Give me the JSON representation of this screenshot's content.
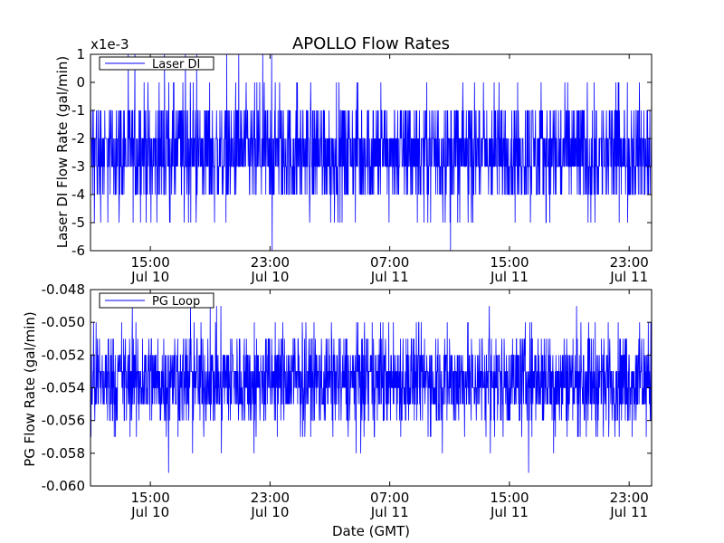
{
  "figure": {
    "title": "APOLLO Flow Rates",
    "line_color": "#0000ff"
  },
  "chart_data": [
    {
      "type": "line",
      "title": "APOLLO Flow Rates",
      "series": [
        {
          "name": "Laser DI",
          "mean": -2.5,
          "spread": 1.0,
          "min": -6.0,
          "max": 1.0
        }
      ],
      "ylabel": "Laser DI Flow Rate (gal/min)",
      "xlabel": "",
      "offset_text": "x1e-3",
      "ylim": [
        -6,
        1
      ],
      "yticks": [
        1,
        0,
        -1,
        -2,
        -3,
        -4,
        -5,
        -6
      ],
      "ytick_labels": [
        "1",
        "0",
        "-1",
        "-2",
        "-3",
        "-4",
        "-5",
        "-6"
      ],
      "xlim": [
        "Jul 10 11:00",
        "Jul 12 00:30"
      ],
      "xticks": [
        {
          "time": "15:00",
          "date": "Jul 10"
        },
        {
          "time": "23:00",
          "date": "Jul 10"
        },
        {
          "time": "07:00",
          "date": "Jul 11"
        },
        {
          "time": "15:00",
          "date": "Jul 11"
        },
        {
          "time": "23:00",
          "date": "Jul 11"
        }
      ],
      "legend": "top-left",
      "grid": false
    },
    {
      "type": "line",
      "series": [
        {
          "name": "PG Loop",
          "mean": -0.0535,
          "spread": 0.0015,
          "min": -0.0592,
          "max": -0.049
        }
      ],
      "ylabel": "PG Flow Rate (gal/min)",
      "xlabel": "Date (GMT)",
      "ylim": [
        -0.06,
        -0.048
      ],
      "yticks": [
        -0.048,
        -0.05,
        -0.052,
        -0.054,
        -0.056,
        -0.058,
        -0.06
      ],
      "ytick_labels": [
        "-0.048",
        "-0.050",
        "-0.052",
        "-0.054",
        "-0.056",
        "-0.058",
        "-0.060"
      ],
      "xlim": [
        "Jul 10 11:00",
        "Jul 12 00:30"
      ],
      "xticks": [
        {
          "time": "15:00",
          "date": "Jul 10"
        },
        {
          "time": "23:00",
          "date": "Jul 10"
        },
        {
          "time": "07:00",
          "date": "Jul 11"
        },
        {
          "time": "15:00",
          "date": "Jul 11"
        },
        {
          "time": "23:00",
          "date": "Jul 11"
        }
      ],
      "legend": "top-left",
      "grid": false
    }
  ]
}
